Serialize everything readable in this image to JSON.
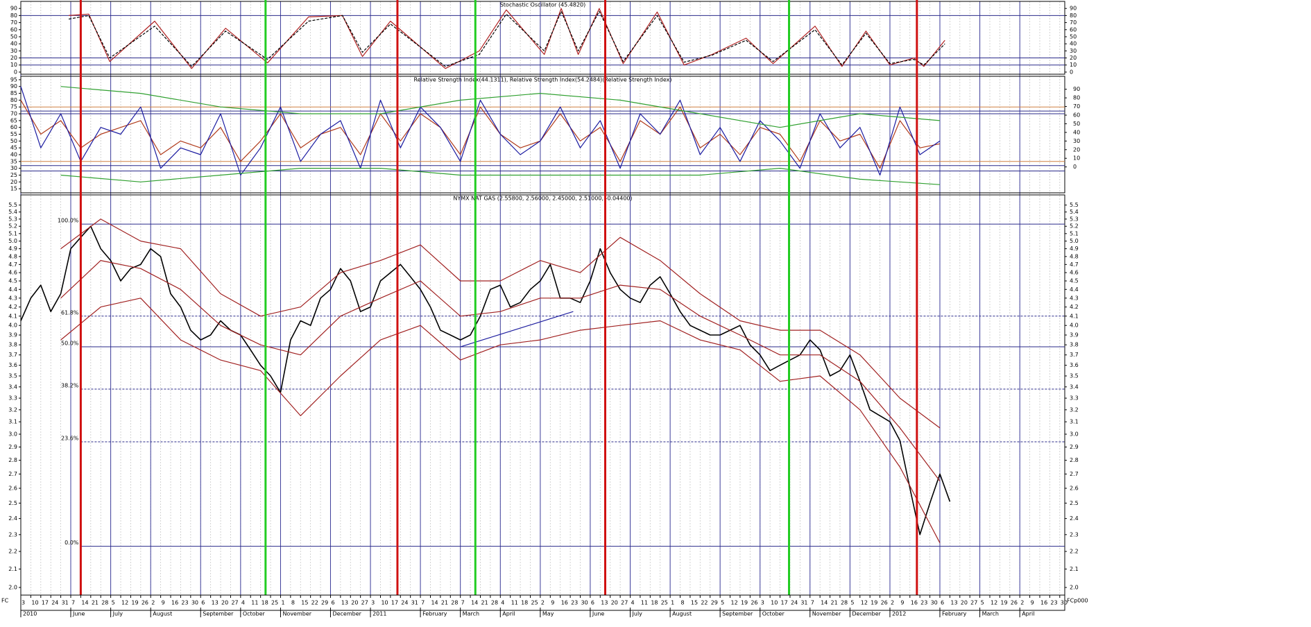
{
  "time_axis": {
    "xlim": [
      0,
      104.5
    ],
    "month_ticks": [
      {
        "value": 0,
        "label": "2010"
      },
      {
        "value": 5,
        "label": "June"
      },
      {
        "value": 9,
        "label": "July"
      },
      {
        "value": 13,
        "label": "August"
      },
      {
        "value": 18,
        "label": "September"
      },
      {
        "value": 22,
        "label": "October"
      },
      {
        "value": 26,
        "label": "November"
      },
      {
        "value": 31,
        "label": "December"
      },
      {
        "value": 35,
        "label": "2011"
      },
      {
        "value": 40,
        "label": "February"
      },
      {
        "value": 44,
        "label": "March"
      },
      {
        "value": 48,
        "label": "April"
      },
      {
        "value": 52,
        "label": "May"
      },
      {
        "value": 57,
        "label": "June"
      },
      {
        "value": 61,
        "label": "July"
      },
      {
        "value": 65,
        "label": "August"
      },
      {
        "value": 70,
        "label": "September"
      },
      {
        "value": 74,
        "label": "October"
      },
      {
        "value": 79,
        "label": "November"
      },
      {
        "value": 83,
        "label": "December"
      },
      {
        "value": 87,
        "label": "2012"
      },
      {
        "value": 92,
        "label": "February"
      },
      {
        "value": 96,
        "label": "March"
      },
      {
        "value": 100,
        "label": "April"
      }
    ],
    "day_labels": [
      3,
      10,
      17,
      24,
      31,
      7,
      14,
      21,
      28,
      5,
      12,
      19,
      26,
      2,
      9,
      16,
      23,
      30,
      6,
      13,
      20,
      27,
      4,
      11,
      18,
      25,
      1,
      8,
      15,
      22,
      29,
      6,
      13,
      20,
      27,
      3,
      10,
      17,
      24,
      31,
      7,
      14,
      21,
      28,
      7,
      14,
      21,
      28,
      4,
      11,
      18,
      25,
      2,
      9,
      16,
      23,
      30,
      6,
      13,
      20,
      27,
      4,
      11,
      18,
      25,
      1,
      8,
      15,
      22,
      29,
      5,
      12,
      19,
      26,
      3,
      10,
      17,
      24,
      31,
      7,
      14,
      21,
      28,
      5,
      12,
      19,
      26,
      2,
      9,
      16,
      23,
      30,
      6,
      13,
      20,
      27,
      5,
      12,
      19,
      26,
      2,
      9,
      16,
      23,
      30
    ],
    "corner_left": "FC",
    "corner_right": "FCp000",
    "markers": [
      {
        "x": 6,
        "color": "#d01010"
      },
      {
        "x": 37.7,
        "color": "#d01010"
      },
      {
        "x": 58.5,
        "color": "#d01010"
      },
      {
        "x": 89.7,
        "color": "#d01010"
      },
      {
        "x": 24.5,
        "color": "#22cc22"
      },
      {
        "x": 45.5,
        "color": "#22cc22"
      },
      {
        "x": 76.9,
        "color": "#22cc22"
      }
    ]
  },
  "chart_data": [
    {
      "type": "line",
      "title": "Stochastic Oscillator (45.4820)",
      "ylim": [
        -3,
        100
      ],
      "yticks": [
        0,
        10,
        20,
        30,
        40,
        50,
        60,
        70,
        80,
        90
      ],
      "hlines": [
        80,
        20,
        10
      ],
      "series": [
        {
          "color": "#b02020",
          "dashed": false,
          "x": [
            4.8,
            6.8,
            8.9,
            13.4,
            17.1,
            20.5,
            24.7,
            28.8,
            32.2,
            34.2,
            37,
            42.5,
            45.9,
            48.6,
            52.4,
            54.1,
            55.8,
            57.9,
            60.3,
            63.7,
            66.4,
            69.2,
            72.6,
            75.3,
            79.5,
            82.2,
            84.6,
            87,
            89.4,
            90.4,
            92.5
          ],
          "values": [
            80,
            82,
            15,
            72,
            5,
            62,
            13,
            78,
            80,
            22,
            72,
            5,
            30,
            88,
            25,
            90,
            25,
            90,
            12,
            85,
            10,
            25,
            48,
            12,
            65,
            8,
            58,
            10,
            20,
            8,
            45
          ]
        },
        {
          "color": "#000000",
          "dashed": true,
          "x": [
            4.8,
            6.8,
            8.9,
            13.4,
            17.1,
            20.5,
            24.7,
            28.8,
            32.2,
            34.2,
            37,
            42.5,
            45.9,
            48.6,
            52.4,
            54.1,
            55.8,
            57.9,
            60.3,
            63.7,
            66.4,
            69.2,
            72.6,
            75.3,
            79.5,
            82.2,
            84.6,
            87,
            89.4,
            90.4,
            92.5
          ],
          "values": [
            75,
            80,
            20,
            65,
            8,
            58,
            18,
            72,
            80,
            28,
            68,
            8,
            25,
            82,
            30,
            86,
            30,
            86,
            15,
            80,
            14,
            24,
            45,
            15,
            60,
            10,
            55,
            12,
            18,
            10,
            40
          ]
        }
      ]
    },
    {
      "type": "line",
      "title": "Relative Strength Index(44.1311), Relative Strength Index(54.2484)(Relative Strength Index)",
      "ylim": [
        12,
        97.5
      ],
      "yticks": [
        15,
        20,
        25,
        30,
        35,
        40,
        45,
        50,
        55,
        60,
        65,
        70,
        75,
        80,
        85,
        90,
        95
      ],
      "y2lim": [
        -30,
        105
      ],
      "y2ticks": [
        0,
        10,
        20,
        30,
        40,
        50,
        60,
        70,
        80,
        90
      ],
      "hlines": [
        75,
        72,
        70,
        35,
        32,
        28
      ],
      "series": [
        {
          "color": "#b03a1a",
          "dashed": false,
          "x": [
            0,
            2,
            4,
            6,
            8,
            10,
            12,
            14,
            16,
            18,
            20,
            22,
            24,
            26,
            28,
            30,
            32,
            34,
            36,
            38,
            40,
            42,
            44,
            46,
            48,
            50,
            52,
            54,
            56,
            58,
            60,
            62,
            64,
            66,
            68,
            70,
            72,
            74,
            76,
            78,
            80,
            82,
            84,
            86,
            88,
            90,
            92
          ],
          "values": [
            80,
            55,
            65,
            45,
            55,
            60,
            65,
            40,
            50,
            45,
            60,
            35,
            50,
            70,
            45,
            55,
            60,
            40,
            70,
            50,
            70,
            60,
            40,
            75,
            55,
            45,
            50,
            70,
            50,
            60,
            35,
            65,
            55,
            75,
            45,
            55,
            40,
            60,
            55,
            35,
            65,
            50,
            55,
            30,
            65,
            45,
            48
          ]
        },
        {
          "color": "#1a1aa0",
          "dashed": false,
          "x": [
            0,
            2,
            4,
            6,
            8,
            10,
            12,
            14,
            16,
            18,
            20,
            22,
            24,
            26,
            28,
            30,
            32,
            34,
            36,
            38,
            40,
            42,
            44,
            46,
            48,
            50,
            52,
            54,
            56,
            58,
            60,
            62,
            64,
            66,
            68,
            70,
            72,
            74,
            76,
            78,
            80,
            82,
            84,
            86,
            88,
            90,
            92
          ],
          "values": [
            90,
            45,
            70,
            35,
            60,
            55,
            75,
            30,
            45,
            40,
            70,
            25,
            45,
            75,
            35,
            55,
            65,
            30,
            80,
            45,
            75,
            60,
            35,
            80,
            55,
            40,
            50,
            75,
            45,
            65,
            30,
            70,
            55,
            80,
            40,
            60,
            35,
            65,
            50,
            30,
            70,
            45,
            60,
            25,
            75,
            40,
            50
          ]
        },
        {
          "color": "#30a030",
          "dashed": false,
          "x": [
            4,
            12,
            20,
            28,
            36,
            44,
            52,
            60,
            68,
            76,
            84,
            92
          ],
          "values": [
            90,
            85,
            75,
            70,
            70,
            80,
            85,
            80,
            70,
            60,
            70,
            65
          ]
        },
        {
          "color": "#30a030",
          "dashed": false,
          "x": [
            4,
            12,
            20,
            28,
            36,
            44,
            52,
            60,
            68,
            76,
            84,
            92
          ],
          "values": [
            25,
            20,
            25,
            30,
            30,
            25,
            25,
            25,
            25,
            30,
            22,
            18
          ]
        }
      ]
    },
    {
      "type": "line",
      "title": "NYMX NAT GAS (2.55800, 2.56000, 2.45000, 2.51000, -0.04400)",
      "log_scale": true,
      "ylim": [
        1.96,
        5.65
      ],
      "yticks": [
        {
          "value": 2,
          "label": "2.0"
        },
        2.1,
        2.2,
        2.3,
        2.4,
        2.5,
        2.6,
        2.7,
        2.8,
        2.9,
        {
          "value": 3,
          "label": "3.0"
        },
        3.1,
        3.2,
        3.3,
        3.4,
        3.5,
        3.6,
        3.7,
        3.8,
        3.9,
        {
          "value": 4,
          "label": "4.0"
        },
        4.1,
        4.2,
        4.3,
        4.4,
        4.5,
        4.6,
        4.7,
        4.8,
        4.9,
        {
          "value": 5,
          "label": "5.0"
        },
        5.1,
        5.2,
        5.3,
        5.4,
        5.5
      ],
      "levels": [
        {
          "value": 5.23,
          "label": "100.0%",
          "dashed": false
        },
        {
          "value": 4.1,
          "label": "61.8%",
          "dashed": true
        },
        {
          "value": 3.78,
          "label": "50.0%",
          "dashed": false
        },
        {
          "value": 3.38,
          "label": "38.2%",
          "dashed": true
        },
        {
          "value": 2.94,
          "label": "23.6%",
          "dashed": true
        },
        {
          "value": 2.23,
          "label": "0.0%",
          "dashed": false
        }
      ],
      "series": [
        {
          "color": "#000000",
          "dashed": false,
          "width": 1.6,
          "values": [
            4.05,
            4.3,
            4.45,
            4.15,
            4.35,
            4.9,
            5.05,
            5.2,
            4.9,
            4.75,
            4.5,
            4.65,
            4.7,
            4.9,
            4.8,
            4.35,
            4.2,
            3.95,
            3.85,
            3.9,
            4.05,
            3.95,
            3.9,
            3.75,
            3.6,
            3.5,
            3.35,
            3.85,
            4.05,
            4.0,
            4.3,
            4.4,
            4.65,
            4.5,
            4.15,
            4.2,
            4.5,
            4.6,
            4.7,
            4.55,
            4.4,
            4.2,
            3.95,
            3.9,
            3.85,
            3.9,
            4.1,
            4.4,
            4.45,
            4.2,
            4.25,
            4.4,
            4.5,
            4.7,
            4.3,
            4.3,
            4.25,
            4.5,
            4.9,
            4.6,
            4.4,
            4.3,
            4.25,
            4.45,
            4.55,
            4.35,
            4.15,
            4.0,
            3.95,
            3.9,
            3.9,
            3.95,
            4.0,
            3.8,
            3.7,
            3.55,
            3.6,
            3.65,
            3.7,
            3.85,
            3.75,
            3.5,
            3.55,
            3.7,
            3.45,
            3.2,
            3.15,
            3.1,
            2.95,
            2.6,
            2.3,
            2.5,
            2.7,
            2.51
          ]
        },
        {
          "color": "#a02020",
          "dashed": false,
          "x": [
            4,
            8,
            12,
            16,
            20,
            24,
            28,
            32,
            36,
            40,
            44,
            48,
            52,
            56,
            60,
            64,
            68,
            72,
            76,
            80,
            84,
            88,
            92
          ],
          "values": [
            4.9,
            5.3,
            5.0,
            4.9,
            4.35,
            4.1,
            4.2,
            4.6,
            4.75,
            4.95,
            4.5,
            4.5,
            4.75,
            4.6,
            5.05,
            4.75,
            4.35,
            4.05,
            3.95,
            3.95,
            3.7,
            3.3,
            3.05
          ]
        },
        {
          "color": "#a02020",
          "dashed": false,
          "x": [
            4,
            8,
            12,
            16,
            20,
            24,
            28,
            32,
            36,
            40,
            44,
            48,
            52,
            56,
            60,
            64,
            68,
            72,
            76,
            80,
            84,
            88,
            92
          ],
          "values": [
            4.3,
            4.75,
            4.65,
            4.4,
            4.0,
            3.8,
            3.7,
            4.1,
            4.3,
            4.5,
            4.1,
            4.15,
            4.3,
            4.3,
            4.45,
            4.4,
            4.1,
            3.9,
            3.7,
            3.7,
            3.45,
            3.05,
            2.65
          ]
        },
        {
          "color": "#a02020",
          "dashed": false,
          "x": [
            4,
            8,
            12,
            16,
            20,
            24,
            28,
            32,
            36,
            40,
            44,
            48,
            52,
            56,
            60,
            64,
            68,
            72,
            76,
            80,
            84,
            88,
            92
          ],
          "values": [
            3.85,
            4.2,
            4.3,
            3.85,
            3.65,
            3.55,
            3.15,
            3.5,
            3.85,
            4.0,
            3.65,
            3.8,
            3.85,
            3.95,
            4.0,
            4.05,
            3.85,
            3.75,
            3.45,
            3.5,
            3.2,
            2.75,
            2.25
          ]
        },
        {
          "color": "#2020a0",
          "dashed": false,
          "x": [
            44,
            55.3
          ],
          "values": [
            3.78,
            4.15
          ]
        }
      ]
    }
  ]
}
